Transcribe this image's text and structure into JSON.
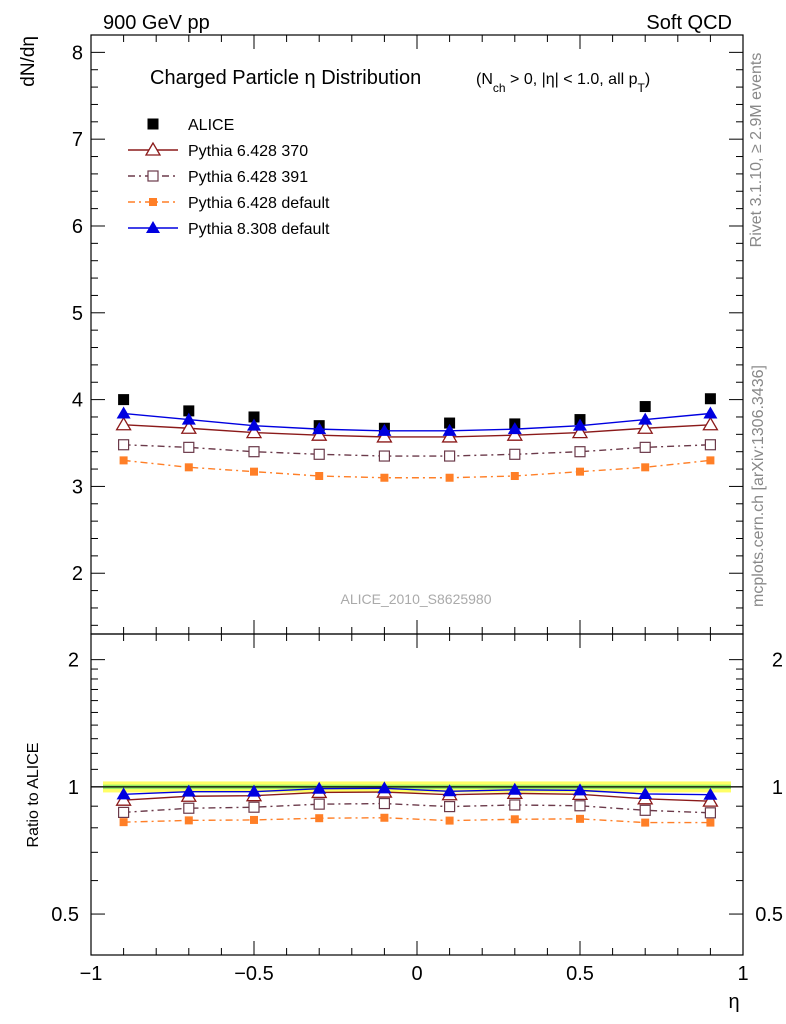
{
  "header": {
    "left": "900 GeV pp",
    "right": "Soft QCD"
  },
  "side_labels": {
    "rivet": "Rivet 3.1.10, ≥ 2.9M events",
    "mcplots": "mcplots.cern.ch [arXiv:1306.3436]"
  },
  "analysis_id": "ALICE_2010_S8625980",
  "colors": {
    "alice": "#000000",
    "p370": "#8b1a1a",
    "p391": "#6b3a4a",
    "pdefault": "#ff7f27",
    "p8": "#0000e0",
    "band_yellow": "#ffff66",
    "band_green": "#99ee66"
  },
  "chart_data": [
    {
      "type": "scatter",
      "panel": "main",
      "title": "Charged Particle η Distribution",
      "title_note": "(N_ch > 0, |η| < 1.0, all p_T)",
      "ylabel": "dN/dη",
      "xlim": [
        -1.0,
        1.0
      ],
      "ylim": [
        1.3,
        8.2
      ],
      "yticks": [
        2,
        3,
        4,
        5,
        6,
        7,
        8
      ],
      "x": [
        -0.9,
        -0.7,
        -0.5,
        -0.3,
        -0.1,
        0.1,
        0.3,
        0.5,
        0.7,
        0.9
      ],
      "legend_position": "top-left",
      "series": [
        {
          "name": "ALICE",
          "key": "alice",
          "marker": "filled-square",
          "line": "none",
          "values": [
            4.0,
            3.87,
            3.8,
            3.7,
            3.67,
            3.73,
            3.72,
            3.77,
            3.92,
            4.01
          ]
        },
        {
          "name": "Pythia 6.428 370",
          "key": "p370",
          "marker": "open-triangle",
          "line": "solid",
          "values": [
            3.71,
            3.67,
            3.62,
            3.59,
            3.57,
            3.57,
            3.59,
            3.62,
            3.67,
            3.71
          ]
        },
        {
          "name": "Pythia 6.428 391",
          "key": "p391",
          "marker": "open-square",
          "line": "dashdot",
          "values": [
            3.48,
            3.45,
            3.4,
            3.37,
            3.35,
            3.35,
            3.37,
            3.4,
            3.45,
            3.48
          ]
        },
        {
          "name": "Pythia 6.428 default",
          "key": "pdefault",
          "marker": "filled-square-small",
          "line": "dashdot",
          "values": [
            3.3,
            3.22,
            3.17,
            3.12,
            3.1,
            3.1,
            3.12,
            3.17,
            3.22,
            3.3
          ]
        },
        {
          "name": "Pythia 8.308 default",
          "key": "p8",
          "marker": "filled-triangle",
          "line": "solid",
          "values": [
            3.84,
            3.77,
            3.7,
            3.66,
            3.64,
            3.64,
            3.66,
            3.7,
            3.77,
            3.84
          ]
        }
      ]
    },
    {
      "type": "scatter",
      "panel": "ratio",
      "ylabel": "Ratio to ALICE",
      "xlabel": "η",
      "xlim": [
        -1.0,
        1.0
      ],
      "xticks": [
        -1,
        -0.5,
        0,
        0.5,
        1
      ],
      "xtick_labels": [
        "−1",
        "−0.5",
        "0",
        "0.5",
        "1"
      ],
      "ylim": [
        0.4,
        2.3
      ],
      "yscale": "log",
      "yticks": [
        0.5,
        1,
        2
      ],
      "ytick_labels": [
        "0.5",
        "1",
        "2"
      ],
      "x": [
        -0.9,
        -0.7,
        -0.5,
        -0.3,
        -0.1,
        0.1,
        0.3,
        0.5,
        0.7,
        0.9
      ],
      "series": [
        {
          "name": "Pythia 6.428 370",
          "key": "p370",
          "values": [
            0.93,
            0.95,
            0.953,
            0.97,
            0.972,
            0.958,
            0.965,
            0.96,
            0.937,
            0.925
          ]
        },
        {
          "name": "Pythia 6.428 391",
          "key": "p391",
          "values": [
            0.87,
            0.89,
            0.895,
            0.91,
            0.913,
            0.898,
            0.906,
            0.902,
            0.88,
            0.868
          ]
        },
        {
          "name": "Pythia 6.428 default",
          "key": "pdefault",
          "values": [
            0.825,
            0.833,
            0.835,
            0.843,
            0.845,
            0.832,
            0.838,
            0.84,
            0.823,
            0.823
          ]
        },
        {
          "name": "Pythia 8.308 default",
          "key": "p8",
          "values": [
            0.96,
            0.974,
            0.974,
            0.99,
            0.992,
            0.976,
            0.984,
            0.981,
            0.962,
            0.958
          ]
        }
      ],
      "band": {
        "lo": 0.97,
        "hi": 1.03
      }
    }
  ]
}
